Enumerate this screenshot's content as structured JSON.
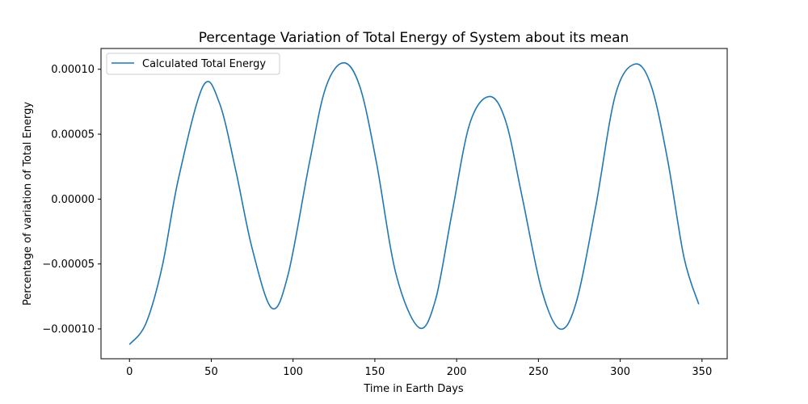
{
  "chart_data": {
    "type": "line",
    "title": "Percentage Variation of Total Energy of System about its mean",
    "xlabel": "Time in Earth Days",
    "ylabel": "Percentage of variation of Total Energy",
    "xlim": [
      -17.4,
      365.4
    ],
    "ylim": [
      -0.000123,
      0.000116
    ],
    "xticks": [
      0,
      50,
      100,
      150,
      200,
      250,
      300,
      350
    ],
    "xtick_labels": [
      "0",
      "50",
      "100",
      "150",
      "200",
      "250",
      "300",
      "350"
    ],
    "yticks": [
      -0.0001,
      -5e-05,
      0,
      5e-05,
      0.0001
    ],
    "ytick_labels": [
      "−0.00010",
      "−0.00005",
      "0.00000",
      "0.00005",
      "0.00010"
    ],
    "grid": false,
    "legend_position": "upper-left",
    "line_color": "#1f77b4",
    "series": [
      {
        "name": "Calculated Total Energy",
        "x": [
          0,
          10,
          20,
          30,
          45,
          55,
          65,
          75,
          87,
          97,
          110,
          120,
          131,
          141,
          151,
          163,
          177,
          187,
          197,
          208,
          220,
          230,
          240,
          252,
          263,
          273,
          285,
          297,
          309,
          319,
          329,
          339,
          348
        ],
        "y": [
          -0.000112,
          -9.6e-05,
          -5.2e-05,
          1.6e-05,
          8.7e-05,
          7.4e-05,
          2.2e-05,
          -3.8e-05,
          -8.4e-05,
          -5.8e-05,
          2.8e-05,
          8.6e-05,
          0.000105,
          8.6e-05,
          2.8e-05,
          -5.8e-05,
          -9.9e-05,
          -7.8e-05,
          -1.2e-05,
          5.8e-05,
          7.9e-05,
          6e-05,
          2e-06,
          -7e-05,
          -0.0001,
          -8e-05,
          -6e-06,
          8e-05,
          0.000104,
          8.7e-05,
          3e-05,
          -4.5e-05,
          -8.1e-05
        ]
      }
    ]
  }
}
